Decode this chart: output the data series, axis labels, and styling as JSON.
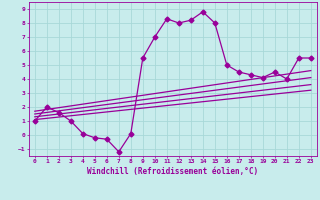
{
  "xlabel": "Windchill (Refroidissement éolien,°C)",
  "background_color": "#c8ecec",
  "line_color": "#990099",
  "grid_color": "#a8d8d8",
  "xlim": [
    -0.5,
    23.5
  ],
  "ylim": [
    -1.5,
    9.5
  ],
  "xticks": [
    0,
    1,
    2,
    3,
    4,
    5,
    6,
    7,
    8,
    9,
    10,
    11,
    12,
    13,
    14,
    15,
    16,
    17,
    18,
    19,
    20,
    21,
    22,
    23
  ],
  "yticks": [
    -1,
    0,
    1,
    2,
    3,
    4,
    5,
    6,
    7,
    8,
    9
  ],
  "main_x": [
    0,
    1,
    2,
    3,
    4,
    5,
    6,
    7,
    8,
    9,
    10,
    11,
    12,
    13,
    14,
    15,
    16,
    17,
    18,
    19,
    20,
    21,
    22,
    23
  ],
  "main_y": [
    1.0,
    2.0,
    1.6,
    1.0,
    0.1,
    -0.2,
    -0.3,
    -1.2,
    0.1,
    5.5,
    7.0,
    8.3,
    8.0,
    8.2,
    8.8,
    8.0,
    5.0,
    4.5,
    4.3,
    4.1,
    4.5,
    4.0,
    5.5,
    5.5
  ],
  "trend_lines": [
    {
      "x": [
        0,
        23
      ],
      "y": [
        1.1,
        3.2
      ]
    },
    {
      "x": [
        0,
        23
      ],
      "y": [
        1.3,
        3.6
      ]
    },
    {
      "x": [
        0,
        23
      ],
      "y": [
        1.5,
        4.1
      ]
    },
    {
      "x": [
        0,
        23
      ],
      "y": [
        1.7,
        4.6
      ]
    }
  ],
  "markersize": 2.5,
  "linewidth": 0.9,
  "tick_fontsize": 4.5,
  "xlabel_fontsize": 5.5
}
